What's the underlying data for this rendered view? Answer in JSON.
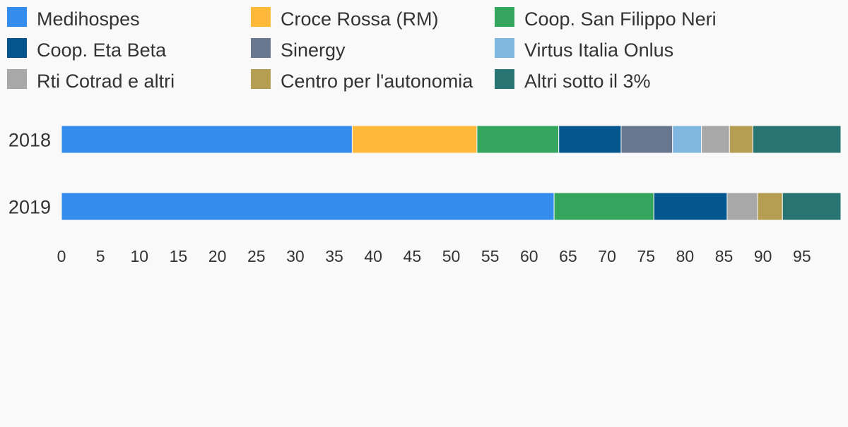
{
  "chart_data": {
    "type": "bar",
    "orientation": "horizontal",
    "stacked": true,
    "title": "",
    "xlabel": "",
    "ylabel": "",
    "categories": [
      "2018",
      "2019"
    ],
    "xlim": [
      0,
      100
    ],
    "x_ticks": [
      "0",
      "5",
      "10",
      "15",
      "20",
      "25",
      "30",
      "35",
      "40",
      "45",
      "50",
      "55",
      "60",
      "65",
      "70",
      "75",
      "80",
      "85",
      "90",
      "95"
    ],
    "grid": false,
    "legend_position": "top",
    "series": [
      {
        "name": "Medihospes",
        "color": "#348ced",
        "values": [
          37.3,
          63.2
        ]
      },
      {
        "name": "Croce Rossa (RM)",
        "color": "#ffb93a",
        "values": [
          16.0,
          0
        ]
      },
      {
        "name": "Coop. San Filippo Neri",
        "color": "#33a55c",
        "values": [
          10.5,
          12.8
        ]
      },
      {
        "name": "Coop. Eta Beta",
        "color": "#04568f",
        "values": [
          8.0,
          9.4
        ]
      },
      {
        "name": "Sinergy",
        "color": "#68778e",
        "values": [
          6.6,
          0
        ]
      },
      {
        "name": "Virtus Italia Onlus",
        "color": "#7fb7e0",
        "values": [
          3.7,
          0
        ]
      },
      {
        "name": "Rti Cotrad e altri",
        "color": "#a8a8a8",
        "values": [
          3.6,
          3.9
        ]
      },
      {
        "name": "Centro per l'autonomia",
        "color": "#b59d52",
        "values": [
          3.0,
          3.2
        ]
      },
      {
        "name": "Altri sotto il 3%",
        "color": "#287472",
        "values": [
          11.3,
          7.5
        ]
      }
    ]
  }
}
